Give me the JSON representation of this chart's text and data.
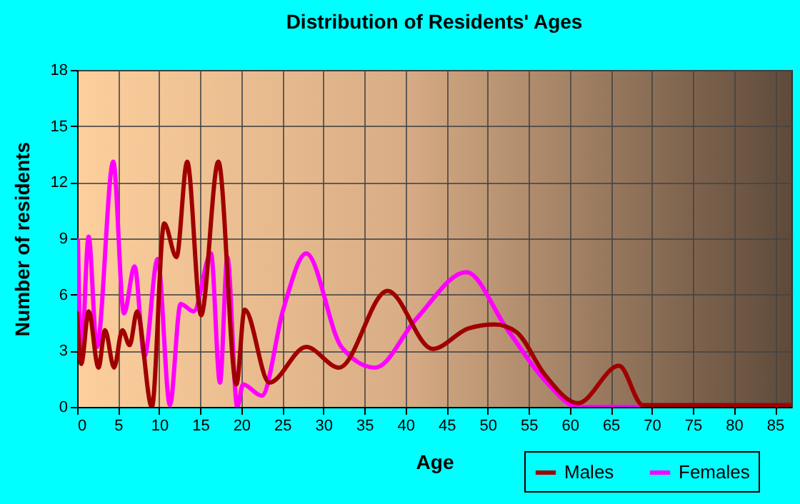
{
  "chart_data": {
    "type": "line",
    "title": "Distribution of Residents' Ages",
    "xlabel": "Age",
    "ylabel": "Number of residents",
    "xlim": [
      0,
      87
    ],
    "xticks": [
      0,
      5,
      10,
      15,
      20,
      25,
      30,
      35,
      40,
      45,
      50,
      55,
      60,
      65,
      70,
      75,
      80,
      85
    ],
    "ylim": [
      0,
      18
    ],
    "yticks": [
      0,
      3,
      6,
      9,
      12,
      15,
      18
    ],
    "grid": true,
    "legend": "bottom right",
    "marker": "none",
    "line_style": "solid",
    "series": [
      {
        "name": "Males",
        "color": "#a00000",
        "x": [
          0,
          0.5,
          1.4,
          2.6,
          3.4,
          4.5,
          5.5,
          6.4,
          7.3,
          9.1,
          10.6,
          12.1,
          13.4,
          15.1,
          17.2,
          19.4,
          20.4,
          23.4,
          27.9,
          31.9,
          37.8,
          43.3,
          47.7,
          50.9,
          53.5,
          57,
          61,
          66,
          68.9,
          75,
          87
        ],
        "values": [
          5.0,
          2.3,
          5.1,
          2.1,
          4.1,
          2.1,
          4.1,
          3.3,
          5.1,
          0,
          9.8,
          8,
          13.1,
          4.9,
          13.1,
          1.2,
          5.2,
          1.3,
          3.2,
          2.1,
          6.2,
          3.1,
          4.2,
          4.4,
          4.0,
          1.7,
          0.2,
          2.2,
          0.1,
          0.1,
          0.1
        ]
      },
      {
        "name": "Females",
        "color": "#ff00ff",
        "x": [
          0.1,
          0.5,
          1.4,
          2.4,
          4.4,
          5.7,
          7.0,
          8.2,
          9.8,
          11.3,
          12.6,
          14.2,
          16.3,
          17.4,
          18.3,
          19.5,
          20.2,
          22.5,
          25.1,
          27.9,
          32.2,
          36.3,
          41.3,
          47.4,
          52.3,
          57,
          61,
          70,
          87
        ],
        "values": [
          8.9,
          2.7,
          9.1,
          3.2,
          13.1,
          5,
          7.5,
          2.7,
          7.9,
          0.1,
          5.5,
          5.1,
          8.2,
          1.3,
          8,
          0,
          1.2,
          0.6,
          5.2,
          8.2,
          3.2,
          2.1,
          4.7,
          7.2,
          4.2,
          1.4,
          0,
          0,
          0
        ]
      }
    ]
  }
}
